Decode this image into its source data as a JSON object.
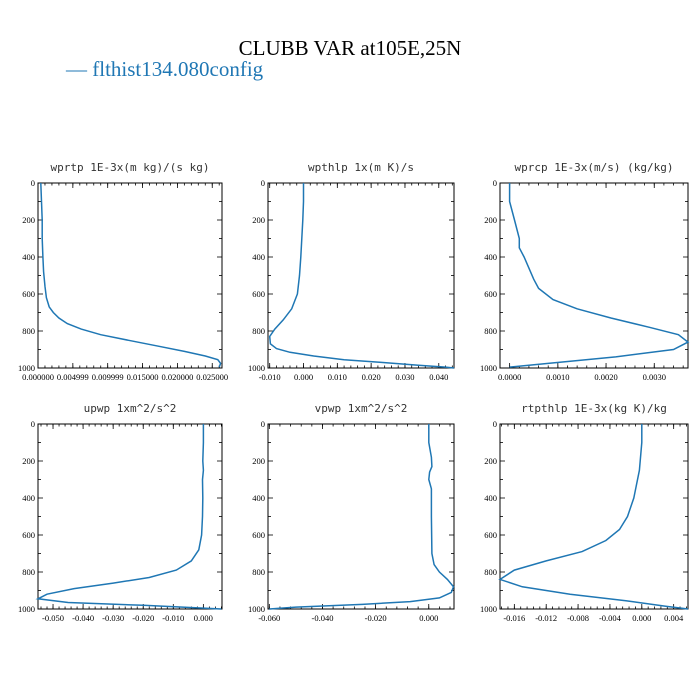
{
  "title": "CLUBB VAR at105E,25N",
  "legend_label": "— flthist134.080config",
  "colors": {
    "series": "#1f77b4"
  },
  "chart_data": [
    {
      "type": "line",
      "title": "wprtp  1E-3x(m kg)/(s kg)",
      "xlim": [
        0.0,
        0.0264
      ],
      "ylim": [
        0,
        1000
      ],
      "y_inverted": true,
      "xtick_labels": [
        "0.000000",
        "0.004999",
        "0.009999",
        "0.015000",
        "0.020000",
        "0.025000"
      ],
      "xtick_values": [
        0.0,
        0.005,
        0.01,
        0.015,
        0.02,
        0.025
      ],
      "ytick_labels": [
        "0",
        "200",
        "400",
        "600",
        "800",
        "1000"
      ],
      "series": [
        {
          "x": [
            0.0004,
            0.0005,
            0.0006,
            0.0006,
            0.0007,
            0.0008,
            0.001,
            0.0012,
            0.0016,
            0.0022,
            0.003,
            0.0042,
            0.0062,
            0.009,
            0.013,
            0.017,
            0.021,
            0.024,
            0.0258,
            0.0262,
            0.026
          ],
          "y": [
            0,
            100,
            200,
            300,
            400,
            480,
            560,
            620,
            670,
            700,
            730,
            760,
            790,
            820,
            850,
            880,
            910,
            935,
            955,
            975,
            995
          ]
        }
      ]
    },
    {
      "type": "line",
      "title": "wpthlp  1x(m K)/s",
      "xlim": [
        -0.0105,
        0.0445
      ],
      "ylim": [
        0,
        1000
      ],
      "y_inverted": true,
      "xtick_labels": [
        "-0.010",
        "0.000",
        "0.010",
        "0.020",
        "0.030",
        "0.040"
      ],
      "xtick_values": [
        -0.01,
        0.0,
        0.01,
        0.02,
        0.03,
        0.04
      ],
      "ytick_labels": [
        "0",
        "200",
        "400",
        "600",
        "800",
        "1000"
      ],
      "series": [
        {
          "x": [
            0.0,
            0.0,
            -0.0002,
            -0.0005,
            -0.0008,
            -0.0012,
            -0.0018,
            -0.0035,
            -0.006,
            -0.0085,
            -0.01,
            -0.0098,
            -0.008,
            -0.004,
            0.003,
            0.012,
            0.023,
            0.034,
            0.042,
            0.0445
          ],
          "y": [
            0,
            100,
            200,
            300,
            400,
            500,
            600,
            680,
            740,
            790,
            830,
            870,
            895,
            915,
            935,
            955,
            970,
            985,
            995,
            1000
          ]
        }
      ]
    },
    {
      "type": "line",
      "title": "wprcp  1E-3x(m/s) (kg/kg)",
      "xlim": [
        -0.0002,
        0.0037
      ],
      "ylim": [
        0,
        1000
      ],
      "y_inverted": true,
      "xtick_labels": [
        "0.0000",
        "0.0010",
        "0.0020",
        "0.0030"
      ],
      "xtick_values": [
        0.0,
        0.001,
        0.002,
        0.003
      ],
      "ytick_labels": [
        "0",
        "200",
        "400",
        "600",
        "800",
        "1000"
      ],
      "series": [
        {
          "x": [
            0.0,
            0.0,
            0.0001,
            0.0002,
            0.0002,
            0.0003,
            0.0004,
            0.0005,
            0.0006,
            0.0009,
            0.0014,
            0.0021,
            0.0029,
            0.0035,
            0.0037,
            0.0034,
            0.0022,
            0.0008,
            0.0
          ],
          "y": [
            0,
            100,
            200,
            300,
            350,
            400,
            460,
            520,
            570,
            630,
            680,
            730,
            780,
            820,
            860,
            900,
            940,
            975,
            995
          ]
        }
      ]
    },
    {
      "type": "line",
      "title": "upwp  1xm^2/s^2",
      "xlim": [
        -0.055,
        0.0062
      ],
      "ylim": [
        0,
        1000
      ],
      "y_inverted": true,
      "xtick_labels": [
        "-0.050",
        "-0.040",
        "-0.030",
        "-0.020",
        "-0.010",
        "0.000"
      ],
      "xtick_values": [
        -0.05,
        -0.04,
        -0.03,
        -0.02,
        -0.01,
        0.0
      ],
      "ytick_labels": [
        "0",
        "200",
        "400",
        "600",
        "800",
        "1000"
      ],
      "series": [
        {
          "x": [
            0.0,
            0.0,
            -0.0002,
            0.0,
            -0.0003,
            -0.0002,
            -0.0003,
            -0.0006,
            -0.0015,
            -0.004,
            -0.009,
            -0.018,
            -0.03,
            -0.043,
            -0.052,
            -0.055,
            -0.045,
            -0.02,
            0.0,
            0.006
          ],
          "y": [
            0,
            100,
            200,
            250,
            300,
            400,
            500,
            600,
            680,
            740,
            790,
            830,
            860,
            890,
            920,
            945,
            965,
            980,
            995,
            1000
          ]
        }
      ]
    },
    {
      "type": "line",
      "title": "vpwp  1xm^2/s^2",
      "xlim": [
        -0.0605,
        0.0095
      ],
      "ylim": [
        0,
        1000
      ],
      "y_inverted": true,
      "xtick_labels": [
        "-0.060",
        "-0.040",
        "-0.020",
        "0.000"
      ],
      "xtick_values": [
        -0.06,
        -0.04,
        -0.02,
        0.0
      ],
      "ytick_labels": [
        "0",
        "200",
        "400",
        "600",
        "800",
        "1000"
      ],
      "series": [
        {
          "x": [
            0.0,
            0.0,
            0.001,
            0.0012,
            0.0003,
            0.0,
            0.001,
            0.001,
            0.0012,
            0.002,
            0.004,
            0.007,
            0.0093,
            0.0085,
            0.004,
            -0.007,
            -0.025,
            -0.05,
            -0.06
          ],
          "y": [
            0,
            100,
            180,
            230,
            260,
            300,
            350,
            500,
            700,
            760,
            800,
            840,
            880,
            910,
            940,
            960,
            975,
            990,
            1000
          ]
        }
      ]
    },
    {
      "type": "line",
      "title": "rtpthlp  1E-3x(kg K)/kg",
      "xlim": [
        -0.0178,
        0.0058
      ],
      "ylim": [
        0,
        1000
      ],
      "y_inverted": true,
      "xtick_labels": [
        "-0.016",
        "-0.012",
        "-0.008",
        "-0.004",
        "0.000",
        "0.004"
      ],
      "xtick_values": [
        -0.016,
        -0.012,
        -0.008,
        -0.004,
        0.0,
        0.004
      ],
      "ytick_labels": [
        "0",
        "200",
        "400",
        "600",
        "800",
        "1000"
      ],
      "series": [
        {
          "x": [
            0.0,
            0.0,
            -0.0003,
            -0.001,
            -0.0018,
            -0.0028,
            -0.0045,
            -0.0075,
            -0.012,
            -0.016,
            -0.0178,
            -0.015,
            -0.009,
            -0.002,
            0.003,
            0.0058
          ],
          "y": [
            0,
            100,
            250,
            400,
            500,
            570,
            630,
            690,
            740,
            790,
            840,
            880,
            920,
            955,
            985,
            1000
          ]
        }
      ]
    }
  ]
}
